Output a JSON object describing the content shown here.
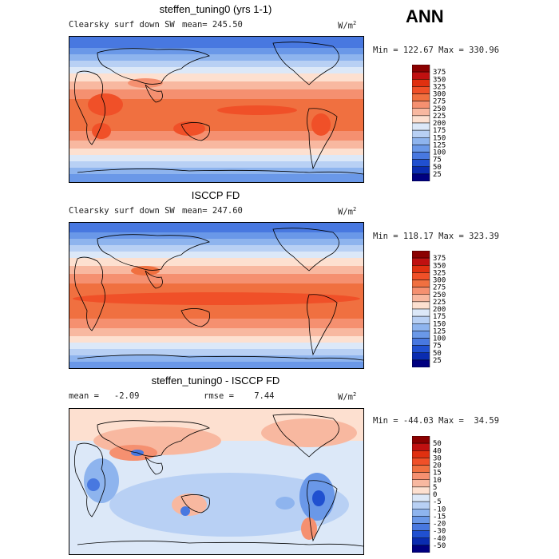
{
  "season": "ANN",
  "panels": [
    {
      "title": "steffen_tuning0 (yrs 1-1)",
      "field": "Clearsky surf down SW",
      "stat": "mean= 245.50",
      "units": "W/m",
      "units_sup": "2",
      "minmax": "Min = 122.67 Max = 330.96",
      "colorbar": {
        "labels": [
          "375",
          "350",
          "325",
          "300",
          "275",
          "250",
          "225",
          "200",
          "175",
          "150",
          "125",
          "100",
          "75",
          "50",
          "25"
        ],
        "colors": [
          "#8b0000",
          "#c01010",
          "#e03010",
          "#f05028",
          "#f07040",
          "#f59070",
          "#f8b8a0",
          "#fde0d0",
          "#dce8f8",
          "#b8d0f4",
          "#8eb4ee",
          "#6a98e8",
          "#4878e0",
          "#2050d0",
          "#0a2cb0",
          "#000080"
        ]
      }
    },
    {
      "title": "ISCCP FD",
      "field": "Clearsky surf down SW",
      "stat": "mean= 247.60",
      "units": "W/m",
      "units_sup": "2",
      "minmax": "Min = 118.17 Max = 323.39",
      "colorbar": {
        "labels": [
          "375",
          "350",
          "325",
          "300",
          "275",
          "250",
          "225",
          "200",
          "175",
          "150",
          "125",
          "100",
          "75",
          "50",
          "25"
        ],
        "colors": [
          "#8b0000",
          "#c01010",
          "#e03010",
          "#f05028",
          "#f07040",
          "#f59070",
          "#f8b8a0",
          "#fde0d0",
          "#dce8f8",
          "#b8d0f4",
          "#8eb4ee",
          "#6a98e8",
          "#4878e0",
          "#2050d0",
          "#0a2cb0",
          "#000080"
        ]
      }
    },
    {
      "title": "steffen_tuning0 - ISCCP FD",
      "stat": "mean =   -2.09",
      "stat2": "rmse =    7.44",
      "units": "W/m",
      "units_sup": "2",
      "minmax": "Min = -44.03 Max =  34.59",
      "colorbar": {
        "labels": [
          "50",
          "40",
          "30",
          "20",
          "15",
          "10",
          "5",
          "0",
          "-5",
          "-10",
          "-15",
          "-20",
          "-30",
          "-40",
          "-50"
        ],
        "colors": [
          "#8b0000",
          "#c01010",
          "#e03010",
          "#f05028",
          "#f07040",
          "#f59070",
          "#f8b8a0",
          "#fde0d0",
          "#dce8f8",
          "#b8d0f4",
          "#8eb4ee",
          "#6a98e8",
          "#4878e0",
          "#2050d0",
          "#0a2cb0",
          "#000080"
        ]
      }
    }
  ]
}
